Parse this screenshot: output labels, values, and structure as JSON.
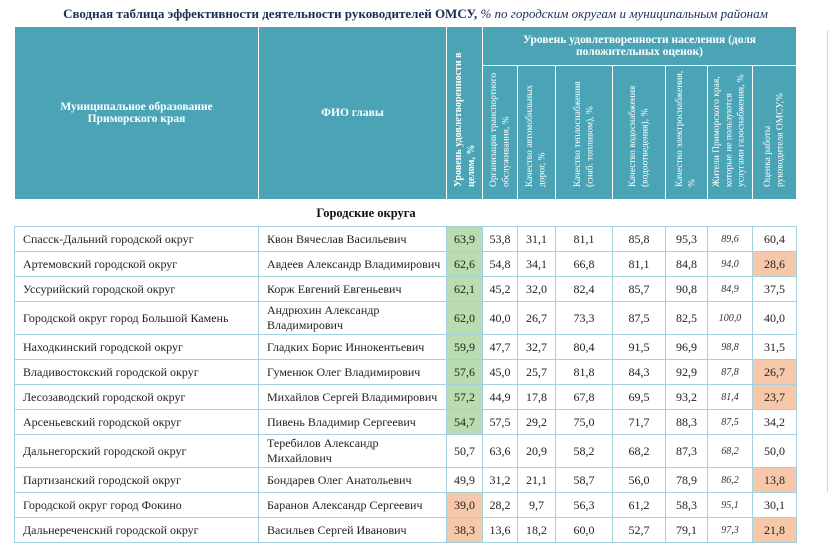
{
  "title": {
    "main": "Сводная таблица эффективности деятельности руководителей ОМСУ,",
    "suffix": " % по городским округам и муниципальным районам"
  },
  "colors": {
    "header_teal": "#4aa4b6",
    "grid_line": "#a3d2dc",
    "highlight_green": "#b9dcb0",
    "highlight_orange": "#f7c7a9"
  },
  "table": {
    "col_headers": {
      "municipality": "Муниципальное образование Приморского края",
      "head_name": "ФИО главы",
      "overall": "Уровень удовлетворенности в целом, %",
      "band": "Уровень удовлетворенности населения (доля положительных оценок)",
      "sub": [
        "Организация транспортного обслуживания, %",
        "Качество автомобильных дорог, %",
        "Качество теплоснабжения (снаб. топливом), %",
        "Качество водоснабжения (водоотведения), %",
        "Качество электроснабжения, %",
        "Жители Приморского края, которые не пользуются услугами газоснабжения, %",
        "Оценка работы руководителя ОМСУ,%"
      ]
    },
    "section": "Городские округа",
    "rows": [
      {
        "municipality": "Спасск-Дальний городской округ",
        "head": "Квон Вячеслав Васильевич",
        "values": [
          "63,9",
          "53,8",
          "31,1",
          "81,1",
          "85,8",
          "95,3",
          "89,6",
          "60,4"
        ],
        "overall_highlight": "green",
        "rating_highlight": ""
      },
      {
        "municipality": "Артемовский городской округ",
        "head": "Авдеев Александр Владимирович",
        "values": [
          "62,6",
          "54,8",
          "34,1",
          "66,8",
          "81,1",
          "84,8",
          "94,0",
          "28,6"
        ],
        "overall_highlight": "green",
        "rating_highlight": "orange"
      },
      {
        "municipality": "Уссурийский городской округ",
        "head": "Корж Евгений Евгеньевич",
        "values": [
          "62,1",
          "45,2",
          "32,0",
          "82,4",
          "85,7",
          "90,8",
          "84,9",
          "37,5"
        ],
        "overall_highlight": "green",
        "rating_highlight": ""
      },
      {
        "municipality": "Городской округ город Большой Камень",
        "head": "Андрюхин Александр Владимирович",
        "values": [
          "62,0",
          "40,0",
          "26,7",
          "73,3",
          "87,5",
          "82,5",
          "100,0",
          "40,0"
        ],
        "overall_highlight": "green",
        "rating_highlight": ""
      },
      {
        "municipality": "Находкинский городской округ",
        "head": "Гладких Борис Иннокентьевич",
        "values": [
          "59,9",
          "47,7",
          "32,7",
          "80,4",
          "91,5",
          "96,9",
          "98,8",
          "31,5"
        ],
        "overall_highlight": "green",
        "rating_highlight": ""
      },
      {
        "municipality": "Владивостокский городской округ",
        "head": "Гуменюк Олег Владимирович",
        "values": [
          "57,6",
          "45,0",
          "25,7",
          "81,8",
          "84,3",
          "92,9",
          "87,8",
          "26,7"
        ],
        "overall_highlight": "green",
        "rating_highlight": "orange"
      },
      {
        "municipality": "Лесозаводский городской округ",
        "head": "Михайлов Сергей Владимирович",
        "values": [
          "57,2",
          "44,9",
          "17,8",
          "67,8",
          "69,5",
          "93,2",
          "81,4",
          "23,7"
        ],
        "overall_highlight": "green",
        "rating_highlight": "orange"
      },
      {
        "municipality": "Арсеньевский городской округ",
        "head": "Пивень Владимир Сергеевич",
        "values": [
          "54,7",
          "57,5",
          "29,2",
          "75,0",
          "71,7",
          "88,3",
          "87,5",
          "34,2"
        ],
        "overall_highlight": "green",
        "rating_highlight": ""
      },
      {
        "municipality": "Дальнегорский городской округ",
        "head": "Теребилов Александр Михайлович",
        "values": [
          "50,7",
          "63,6",
          "20,9",
          "58,2",
          "68,2",
          "87,3",
          "68,2",
          "50,0"
        ],
        "overall_highlight": "",
        "rating_highlight": ""
      },
      {
        "municipality": "Партизанский городской округ",
        "head": "Бондарев Олег Анатольевич",
        "values": [
          "49,9",
          "31,2",
          "21,1",
          "58,7",
          "56,0",
          "78,9",
          "86,2",
          "13,8"
        ],
        "overall_highlight": "",
        "rating_highlight": "orange"
      },
      {
        "municipality": "Городской округ город Фокино",
        "head": "Баранов Александр Сергеевич",
        "values": [
          "39,0",
          "28,2",
          "9,7",
          "56,3",
          "61,2",
          "58,3",
          "95,1",
          "30,1"
        ],
        "overall_highlight": "orange",
        "rating_highlight": ""
      },
      {
        "municipality": "Дальнереченский городской округ",
        "head": "Васильев Сергей Иванович",
        "values": [
          "38,3",
          "13,6",
          "18,2",
          "60,0",
          "52,7",
          "79,1",
          "97,3",
          "21,8"
        ],
        "overall_highlight": "orange",
        "rating_highlight": "orange"
      }
    ]
  }
}
